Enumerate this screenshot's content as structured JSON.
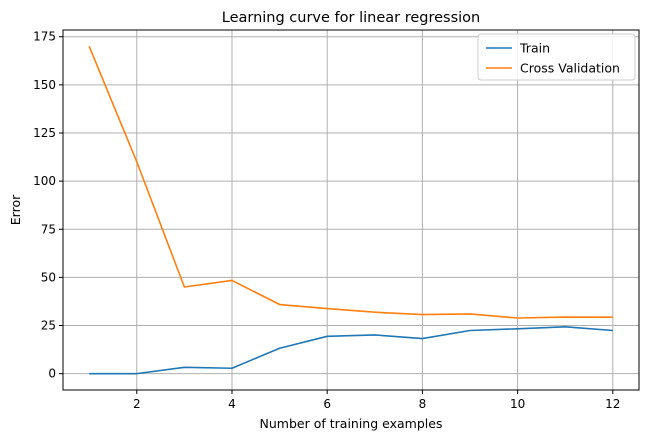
{
  "chart_data": {
    "type": "line",
    "title": "Learning curve for linear regression",
    "xlabel": "Number of training examples",
    "ylabel": "Error",
    "x": [
      1,
      2,
      3,
      4,
      5,
      6,
      7,
      8,
      9,
      10,
      11,
      12
    ],
    "series": [
      {
        "name": "Train",
        "color": "#1f77b4",
        "values": [
          0,
          0,
          3.3,
          2.8,
          13.2,
          19.4,
          20.1,
          18.2,
          22.4,
          23.3,
          24.3,
          22.4
        ]
      },
      {
        "name": "Cross Validation",
        "color": "#ff7f0e",
        "values": [
          170,
          110,
          45.0,
          48.4,
          35.9,
          33.8,
          31.9,
          30.7,
          31.0,
          28.9,
          29.4,
          29.3
        ]
      }
    ],
    "xlim": [
      0.45,
      12.55
    ],
    "ylim": [
      -8.5,
      178.5
    ],
    "xticks": [
      2,
      4,
      6,
      8,
      10,
      12
    ],
    "yticks": [
      0,
      25,
      50,
      75,
      100,
      125,
      150,
      175
    ],
    "grid": true,
    "legend_position": "upper right"
  }
}
